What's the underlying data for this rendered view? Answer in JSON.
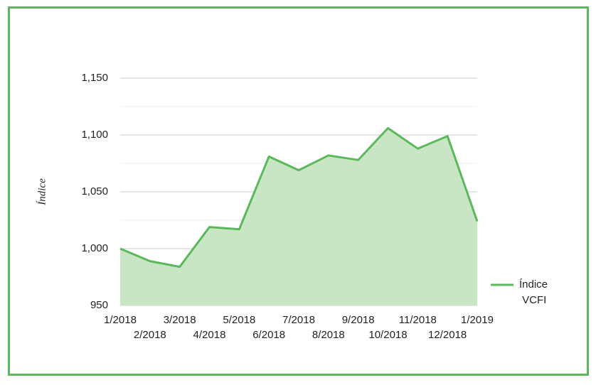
{
  "chart_data": {
    "type": "area",
    "y_label": "Índice",
    "categories": [
      "1/2018",
      "2/2018",
      "3/2018",
      "4/2018",
      "5/2018",
      "6/2018",
      "7/2018",
      "8/2018",
      "9/2018",
      "10/2018",
      "11/2018",
      "12/2018",
      "1/2019"
    ],
    "series": [
      {
        "name": "Índice VCFI",
        "color": "#5cb85c",
        "fill": "#c8e6c4",
        "values": [
          1000,
          989,
          984,
          1019,
          1017,
          1081,
          1069,
          1082,
          1078,
          1106,
          1088,
          1099,
          1024
        ]
      }
    ],
    "ylim": [
      950,
      1150
    ],
    "yticks": [
      950,
      {
        "value": 1000,
        "label": "1,000"
      },
      {
        "value": 1050,
        "label": "1,050"
      },
      {
        "value": 1100,
        "label": "1,100"
      },
      {
        "value": 1150,
        "label": "1,150"
      }
    ],
    "minor_gridlines": [
      975,
      1025,
      1075,
      1125
    ],
    "grid": true,
    "legend": "right"
  }
}
